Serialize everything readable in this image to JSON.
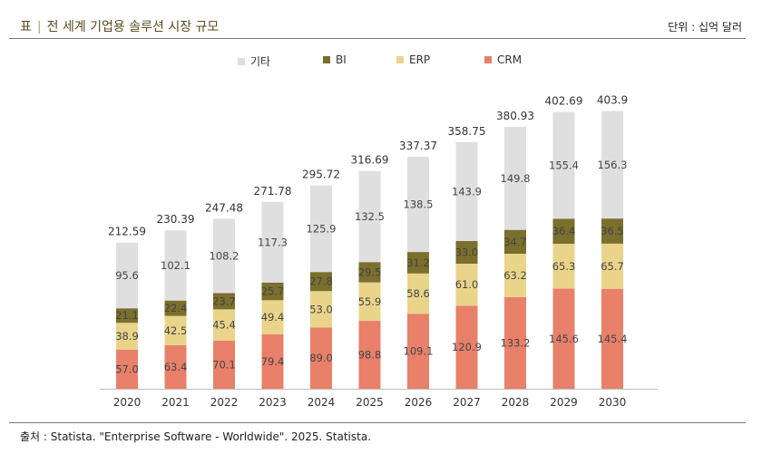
{
  "header": {
    "label": "표",
    "separator": "|",
    "title": "전 세계 기업용 솔루션 시장 규모",
    "unit": "단위 : 십억 달러"
  },
  "legend": [
    {
      "name": "기타",
      "color": "#e0dfe0"
    },
    {
      "name": "BI",
      "color": "#7a6f2c"
    },
    {
      "name": "ERP",
      "color": "#ead48a"
    },
    {
      "name": "CRM",
      "color": "#e8806a"
    }
  ],
  "chart_data": {
    "type": "bar",
    "stacked": true,
    "title": "전 세계 기업용 솔루션 시장 규모",
    "unit": "단위 : 십억 달러",
    "categories": [
      "2020",
      "2021",
      "2022",
      "2023",
      "2024",
      "2025",
      "2026",
      "2027",
      "2028",
      "2029",
      "2030"
    ],
    "series": [
      {
        "name": "CRM",
        "color": "#e8806a",
        "values": [
          57.0,
          63.4,
          70.1,
          79.4,
          89.0,
          98.8,
          109.1,
          120.9,
          133.2,
          145.6,
          145.4
        ]
      },
      {
        "name": "ERP",
        "color": "#ead48a",
        "values": [
          38.9,
          42.5,
          45.4,
          49.4,
          53.0,
          55.9,
          58.6,
          61.0,
          63.2,
          65.3,
          65.7
        ]
      },
      {
        "name": "BI",
        "color": "#7a6f2c",
        "values": [
          21.1,
          22.4,
          23.7,
          25.7,
          27.8,
          29.5,
          31.2,
          33.0,
          34.7,
          36.4,
          36.5
        ]
      },
      {
        "name": "기타",
        "color": "#e0dfe0",
        "values": [
          95.6,
          102.1,
          108.2,
          117.3,
          125.9,
          132.5,
          138.5,
          143.9,
          149.8,
          155.4,
          156.3
        ]
      }
    ],
    "totals": [
      "212.59",
      "230.39",
      "247.48",
      "271.78",
      "295.72",
      "316.69",
      "337.37",
      "358.75",
      "380.93",
      "402.69",
      "403.9"
    ],
    "ylim": [
      0,
      460
    ],
    "xlabel": "",
    "ylabel": ""
  },
  "footer": {
    "source": "출처 : Statista. \"Enterprise Software - Worldwide\". 2025. Statista."
  }
}
